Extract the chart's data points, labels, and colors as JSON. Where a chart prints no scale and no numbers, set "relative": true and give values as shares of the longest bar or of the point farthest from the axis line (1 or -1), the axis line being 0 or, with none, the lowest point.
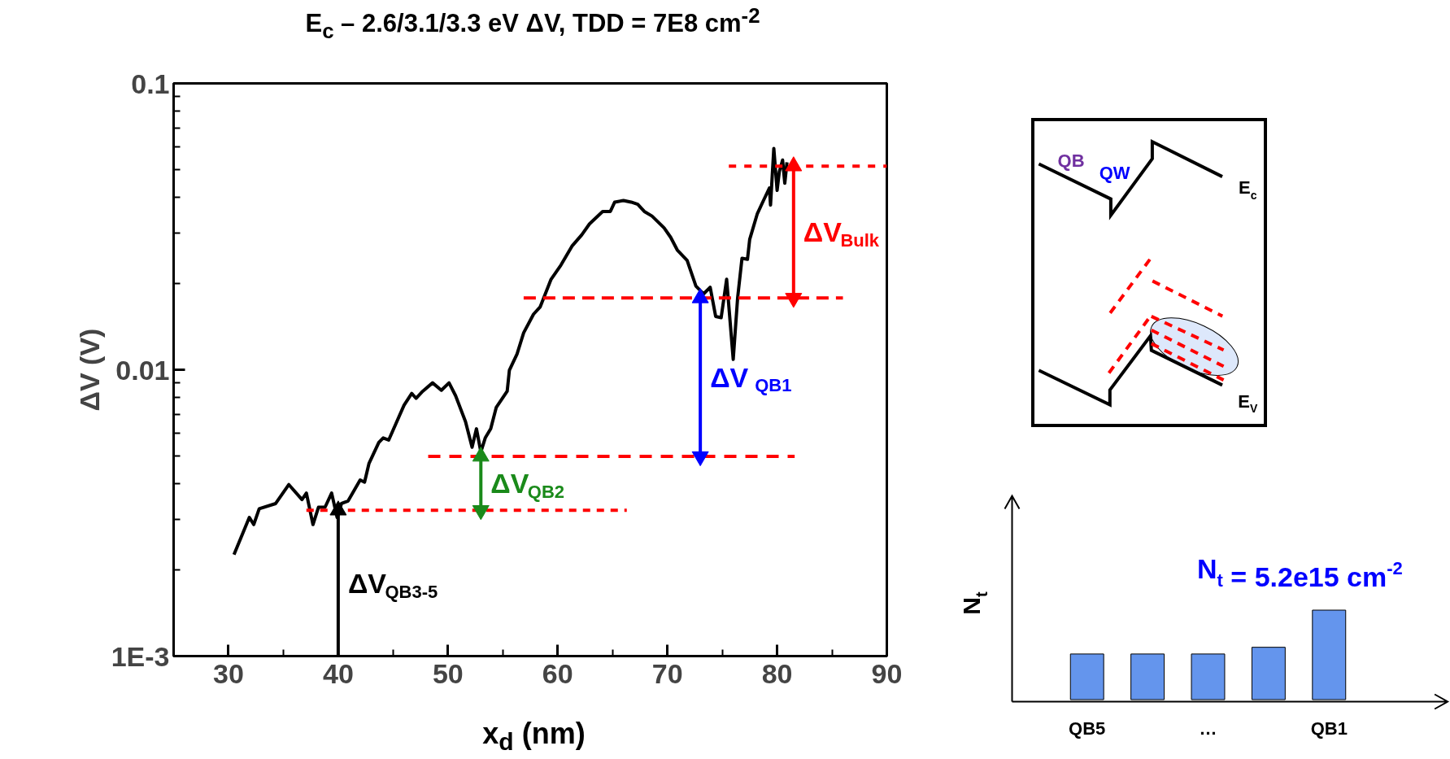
{
  "chart_data": [
    {
      "type": "line",
      "title": "E$_{c}$ – 2.6/3.1/3.3 eV ΔV, TDD = 7E8 cm$^{-2}$",
      "xlabel": "x$_{d}$ (nm)",
      "ylabel": "ΔV (V)",
      "log": "y",
      "xlim": [
        25,
        90
      ],
      "xticks": [
        30,
        40,
        50,
        60,
        70,
        80,
        90
      ],
      "ylim": [
        0.001,
        0.1
      ],
      "yticks": [
        {
          "value": 0.001,
          "label": "1E-3"
        },
        0.01,
        0.1
      ],
      "series": [
        {
          "color": "#000000",
          "line_style": "solid",
          "x": [
            30.5,
            31.9,
            32.3,
            32.8,
            34.3,
            35.5,
            36.7,
            37.1,
            37.7,
            38.2,
            38.8,
            39.4,
            39.9,
            40.3,
            40.9,
            42.0,
            42.4,
            42.8,
            43.7,
            44.1,
            44.6,
            46.0,
            46.7,
            47.1,
            47.7,
            48.6,
            49.4,
            50.1,
            50.7,
            51.6,
            52.2,
            52.6,
            53.0,
            53.4,
            53.9,
            54.4,
            55.4,
            55.6,
            56.3,
            56.9,
            57.8,
            58.4,
            59.4,
            60.3,
            61.3,
            62.2,
            62.9,
            64.1,
            64.8,
            65.2,
            66.0,
            66.7,
            67.3,
            67.9,
            68.6,
            69.7,
            70.3,
            70.9,
            71.8,
            72.6,
            73.3,
            73.9,
            74.4,
            74.9,
            75.4,
            76.0,
            76.4,
            76.8,
            77.3,
            77.5,
            78.2,
            78.8,
            79.3,
            79.4,
            79.7,
            80.0,
            80.2,
            80.5,
            80.7,
            80.9
          ],
          "values": [
            0.00226,
            0.00305,
            0.00288,
            0.00327,
            0.00341,
            0.00397,
            0.00352,
            0.00371,
            0.00288,
            0.00331,
            0.00331,
            0.00371,
            0.00305,
            0.00341,
            0.00348,
            0.00412,
            0.00405,
            0.0047,
            0.00557,
            0.00578,
            0.00568,
            0.00752,
            0.00826,
            0.00795,
            0.00841,
            0.009,
            0.00848,
            0.009,
            0.00811,
            0.00659,
            0.00536,
            0.00622,
            0.00516,
            0.00578,
            0.00622,
            0.00738,
            0.00841,
            0.00996,
            0.01135,
            0.01345,
            0.01563,
            0.01656,
            0.0207,
            0.0232,
            0.027,
            0.0296,
            0.0323,
            0.0357,
            0.0357,
            0.0385,
            0.039,
            0.0385,
            0.0378,
            0.0357,
            0.0344,
            0.0313,
            0.029,
            0.0262,
            0.0241,
            0.0196,
            0.0184,
            0.0194,
            0.01535,
            0.0152,
            0.0207,
            0.01087,
            0.0178,
            0.0245,
            0.0243,
            0.0285,
            0.0351,
            0.0393,
            0.0431,
            0.0376,
            0.0593,
            0.0423,
            0.0492,
            0.054,
            0.0448,
            0.053
          ]
        },
        {
          "color": "#ff0000",
          "line_style": "dashed",
          "x": [
            75.6,
            90
          ],
          "values": [
            0.0514,
            0.0514
          ]
        },
        {
          "color": "#ff0000",
          "line_style": "dashed",
          "x": [
            56.9,
            86.0
          ],
          "values": [
            0.0178,
            0.0178
          ]
        },
        {
          "color": "#ff0000",
          "line_style": "dashed",
          "x": [
            48.2,
            81.6
          ],
          "values": [
            0.00498,
            0.00498
          ]
        },
        {
          "color": "#ff0000",
          "line_style": "dashed",
          "x": [
            37.1,
            66.3
          ],
          "values": [
            0.00323,
            0.00323
          ]
        },
        {
          "color": "#ff0000",
          "line_style": "solid",
          "marker": "triangle",
          "x": [
            81.5,
            81.5
          ],
          "values": [
            0.0178,
            0.0514
          ]
        },
        {
          "color": "#0000ff",
          "line_style": "solid",
          "marker": "triangle",
          "x": [
            73.0,
            73.0
          ],
          "values": [
            0.00498,
            0.0178
          ]
        },
        {
          "color": "#1a8a1a",
          "line_style": "solid",
          "marker": "triangle",
          "x": [
            53.0,
            53.0
          ],
          "values": [
            0.00323,
            0.00498
          ]
        },
        {
          "color": "#000000",
          "line_style": "solid",
          "marker": "triangle",
          "x": [
            40.0,
            40.0
          ],
          "values": [
            0.001,
            0.00323
          ]
        }
      ],
      "annotations": [
        "ΔV$_{Bulk}$",
        "ΔV $_{QB1}$",
        "ΔV$_{QB2}$",
        "ΔV$_{QB3-5}$"
      ]
    },
    {
      "type": "other",
      "annotations": [
        "QB",
        "QW",
        "E$_{c}$",
        "E$_{V}$"
      ]
    },
    {
      "type": "bar",
      "relative": true,
      "categories": [
        "QB5",
        null,
        "…",
        null,
        "QB1"
      ],
      "values": [
        0.51,
        0.51,
        0.51,
        0.585,
        1
      ],
      "color": "#6495ed",
      "ylabel": "N$_{t}$",
      "annotations": [
        "N$_{t}$ = 5.2e15 cm$^{-2}$"
      ]
    }
  ]
}
